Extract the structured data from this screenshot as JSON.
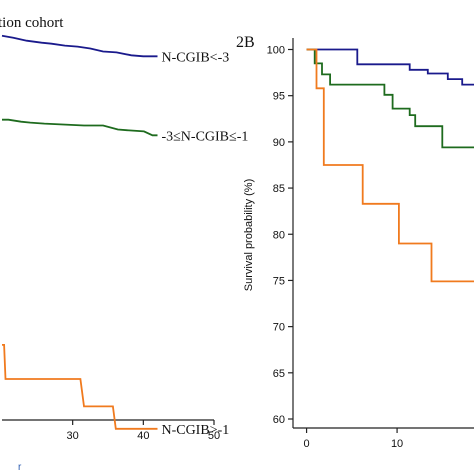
{
  "chart_data": [
    {
      "type": "line",
      "panel_label": "",
      "title": "tion cohort",
      "xlabel": "",
      "ylabel": "",
      "x_tick_labels": [
        "30",
        "40",
        "50"
      ],
      "x_tick_values": [
        30,
        40,
        50
      ],
      "xlim": [
        20,
        50
      ],
      "ylim": [
        60,
        100
      ],
      "corner_fragment": "r",
      "series": [
        {
          "name": "N-CGIB<-3",
          "color": "#1a1a8c",
          "x": [
            20,
            21.6,
            23.5,
            25.6,
            27,
            28.9,
            30.7,
            32.5,
            34.3,
            36.2,
            38.3,
            40,
            42
          ],
          "y": [
            99.4,
            99.2,
            98.9,
            98.7,
            98.6,
            98.4,
            98.3,
            98.1,
            97.8,
            97.7,
            97.4,
            97.3,
            97.3
          ]
        },
        {
          "name": "-3≤N-CGIB≤-1",
          "color": "#1e6b1e",
          "x": [
            20,
            20.9,
            22.7,
            24,
            26,
            29,
            31.6,
            34.3,
            36.4,
            38,
            40.1,
            41.3,
            42
          ],
          "y": [
            90.8,
            90.8,
            90.6,
            90.5,
            90.4,
            90.3,
            90.2,
            90.2,
            89.8,
            89.7,
            89.6,
            89.2,
            89.2
          ]
        },
        {
          "name": "N-CGIB>-1",
          "color": "#f07a1e",
          "x": [
            20,
            20.3,
            20.5,
            31.1,
            31.6,
            32,
            35.7,
            36.1,
            42
          ],
          "y": [
            67.7,
            67.7,
            64.2,
            64.2,
            61.4,
            61.4,
            61.4,
            59.1,
            59.1
          ]
        }
      ]
    },
    {
      "type": "line",
      "panel_label": "2B",
      "title": "",
      "xlabel": "",
      "ylabel": "Survival probability (%)",
      "x_tick_labels": [
        "0",
        "10"
      ],
      "x_tick_values": [
        0,
        10
      ],
      "y_tick_labels": [
        "60",
        "65",
        "70",
        "75",
        "80",
        "85",
        "90",
        "95",
        "100"
      ],
      "y_tick_values": [
        60,
        65,
        70,
        75,
        80,
        85,
        90,
        95,
        100
      ],
      "xlim": [
        -1.5,
        18.5
      ],
      "ylim": [
        59,
        100.5
      ],
      "series": [
        {
          "name": "",
          "color": "#1a1a8c",
          "x": [
            0,
            5.6,
            5.6,
            11.4,
            11.4,
            13.4,
            13.4,
            15.6,
            15.6,
            17.2,
            17.2,
            18.5
          ],
          "y": [
            100,
            100,
            98.4,
            98.4,
            97.8,
            97.8,
            97.4,
            97.4,
            96.8,
            96.8,
            96.2,
            96.2
          ]
        },
        {
          "name": "",
          "color": "#1e6b1e",
          "x": [
            0,
            0.9,
            0.9,
            1.7,
            1.7,
            2.6,
            2.6,
            8.6,
            8.6,
            9.5,
            9.5,
            11.4,
            11.4,
            12,
            12,
            15,
            15,
            18.5
          ],
          "y": [
            100,
            100,
            98.5,
            98.5,
            97.3,
            97.3,
            96.2,
            96.2,
            95.1,
            95.1,
            93.6,
            93.6,
            92.9,
            92.9,
            91.7,
            91.7,
            89.4,
            89.4
          ]
        },
        {
          "name": "",
          "color": "#f07a1e",
          "x": [
            0,
            1.1,
            1.1,
            1.9,
            1.9,
            6.2,
            6.2,
            10.2,
            10.2,
            13.8,
            13.8,
            18.5
          ],
          "y": [
            100,
            100,
            95.8,
            95.8,
            87.5,
            87.5,
            83.3,
            83.3,
            79,
            79,
            74.9,
            74.9
          ]
        }
      ]
    }
  ]
}
